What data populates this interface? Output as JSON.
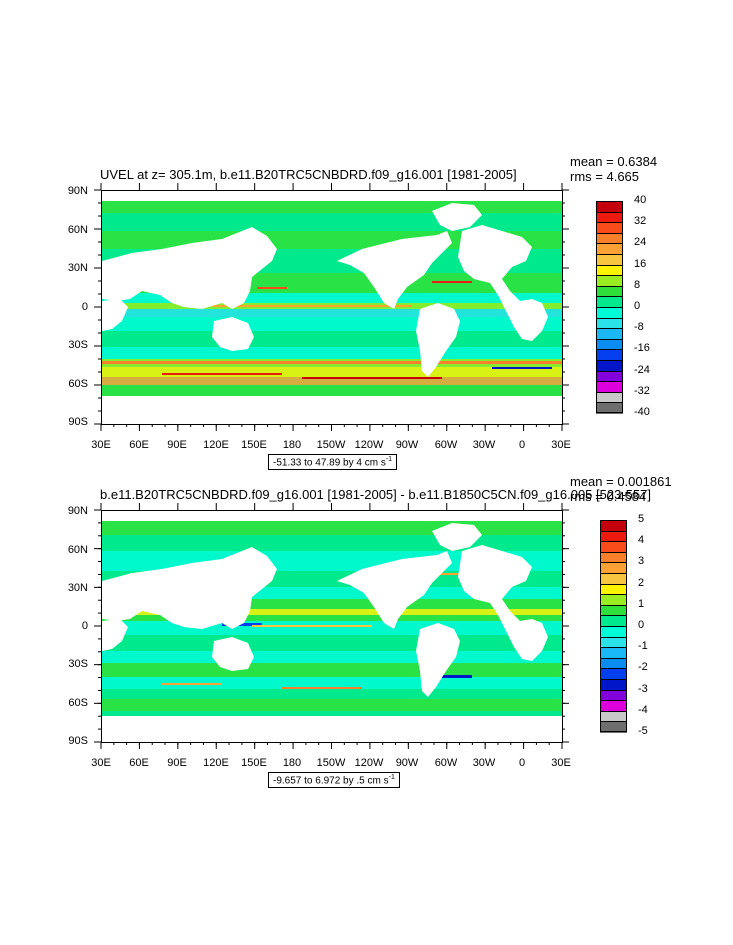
{
  "panels": [
    {
      "title": "UVEL at z= 305.1m, b.e11.B20TRC5CNBDRD.f09_g16.001 [1981-2005]",
      "mean": "mean = 0.6384",
      "rms": "rms = 4.665",
      "range_text": "-51.33 to 47.89 by 4 cm s",
      "range_unit_exp": "-1",
      "colorbar": {
        "labels": [
          "40",
          "32",
          "24",
          "16",
          "8",
          "0",
          "-8",
          "-16",
          "-24",
          "-32",
          "-40"
        ],
        "colors": [
          "#c4000c",
          "#ed1a10",
          "#fa4c1b",
          "#f9802a",
          "#fca234",
          "#f7c53f",
          "#fff300",
          "#9aed20",
          "#2fe03a",
          "#00e98c",
          "#00fcd7",
          "#29e3e8",
          "#1ab8f5",
          "#0a8cf0",
          "#0440f0",
          "#0016c8",
          "#8200dc",
          "#dd00dd",
          "#c8c8c8",
          "#6e6e6e"
        ]
      }
    },
    {
      "title": "b.e11.B20TRC5CNBDRD.f09_g16.001 [1981-2005] - b.e11.B1850C5CN.f09_g16.005 [523-557]",
      "mean": "mean = 0.001861",
      "rms": "rms = 0.4584",
      "range_text": "-9.657 to 6.972 by .5 cm s",
      "range_unit_exp": "-1",
      "colorbar": {
        "labels": [
          "5",
          "4",
          "3",
          "2",
          "1",
          "0",
          "-1",
          "-2",
          "-3",
          "-4",
          "-5"
        ],
        "colors": [
          "#c4000c",
          "#ed1a10",
          "#fa4c1b",
          "#f9802a",
          "#fca234",
          "#f7c53f",
          "#fff300",
          "#9aed20",
          "#2fe03a",
          "#00e98c",
          "#00fcd7",
          "#29e3e8",
          "#1ab8f5",
          "#0a8cf0",
          "#0440f0",
          "#0016c8",
          "#8200dc",
          "#dd00dd",
          "#c8c8c8",
          "#6e6e6e"
        ]
      }
    }
  ],
  "axes": {
    "lat_labels": [
      "90N",
      "60N",
      "30N",
      "0",
      "30S",
      "60S",
      "90S"
    ],
    "lon_labels": [
      "30E",
      "60E",
      "90E",
      "120E",
      "150E",
      "180",
      "150W",
      "120W",
      "90W",
      "60W",
      "30W",
      "0",
      "30E"
    ]
  },
  "field_colors": {
    "background_ocean_1": "#00e98c",
    "background_ocean_2": "#2fe03a",
    "cyan_band": "#00fcd7",
    "light_cyan": "#29e3e8",
    "land": "#ffffff"
  }
}
